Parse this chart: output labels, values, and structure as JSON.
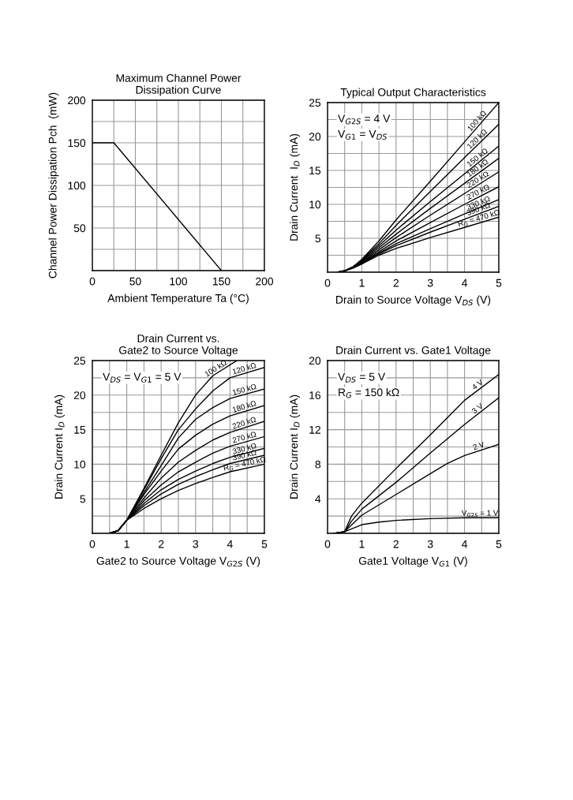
{
  "chart_data": [
    {
      "type": "line",
      "title": "Maximum Channel Power\nDissipation Curve",
      "xlabel": "Ambient Temperature Ta (°C)",
      "ylabel": "Channel Power Dissipation Pch  (mW)",
      "xlim": [
        0,
        200
      ],
      "ylim": [
        0,
        200
      ],
      "xticks": [
        0,
        {
          "value": 25,
          "label": null
        },
        50,
        {
          "value": 75,
          "label": null
        },
        100,
        {
          "value": 125,
          "label": null
        },
        150,
        {
          "value": 175,
          "label": null
        },
        200
      ],
      "yticks": [
        {
          "value": 0,
          "label": null
        },
        {
          "value": 25,
          "label": null
        },
        50,
        {
          "value": 75,
          "label": null
        },
        100,
        {
          "value": 125,
          "label": null
        },
        150,
        {
          "value": 175,
          "label": null
        },
        200
      ],
      "grid": true,
      "legend": false,
      "series": [
        {
          "color": "#000000",
          "x": [
            0,
            25,
            150
          ],
          "values": [
            150,
            150,
            0
          ]
        }
      ]
    },
    {
      "type": "line",
      "title": "Typical Output Characteristics",
      "xlabel": "Drain to Source Voltage V$_{DS}$ (V)",
      "ylabel": "Drain Current  I$_{D}$ (mA)",
      "xlim": [
        0,
        5
      ],
      "ylim": [
        0,
        25
      ],
      "xticks": [
        0,
        {
          "value": 0.5,
          "label": null
        },
        1,
        {
          "value": 1.5,
          "label": null
        },
        2,
        {
          "value": 2.5,
          "label": null
        },
        3,
        {
          "value": 3.5,
          "label": null
        },
        4,
        {
          "value": 4.5,
          "label": null
        },
        5
      ],
      "yticks": [
        {
          "value": 0,
          "label": null
        },
        {
          "value": 2.5,
          "label": null
        },
        5,
        {
          "value": 7.5,
          "label": null
        },
        10,
        {
          "value": 12.5,
          "label": null
        },
        15,
        {
          "value": 17.5,
          "label": null
        },
        20,
        {
          "value": 22.5,
          "label": null
        },
        25
      ],
      "grid": true,
      "legend": false,
      "annotations": [
        "V$_{G2S}$ = 4 V",
        "V$_{G1}$ = V$_{DS}$"
      ],
      "x": [
        0.3,
        0.5,
        0.75,
        1,
        1.5,
        2,
        3,
        4,
        5
      ],
      "series": [
        {
          "name": "100 kΩ",
          "color": "#000000",
          "values": [
            0,
            0.2,
            0.8,
            1.9,
            4.6,
            7.7,
            13.4,
            19.2,
            25
          ]
        },
        {
          "name": "120 kΩ",
          "color": "#000000",
          "values": [
            0,
            0.2,
            0.8,
            1.8,
            4.2,
            6.9,
            11.9,
            16.9,
            21.8
          ]
        },
        {
          "name": "150 kΩ",
          "color": "#000000",
          "values": [
            0,
            0.2,
            0.8,
            1.7,
            3.9,
            6.2,
            10.4,
            14.5,
            18.6
          ]
        },
        {
          "name": "180 kΩ",
          "color": "#000000",
          "values": [
            0,
            0.2,
            0.8,
            1.6,
            3.6,
            5.6,
            9.4,
            13.1,
            16.8
          ]
        },
        {
          "name": "220 kΩ",
          "color": "#000000",
          "values": [
            0,
            0.2,
            0.7,
            1.5,
            3.3,
            5.1,
            8.4,
            11.6,
            14.8
          ]
        },
        {
          "name": "270 kΩ",
          "color": "#000000",
          "values": [
            0,
            0.2,
            0.7,
            1.4,
            3.0,
            4.6,
            7.3,
            10.0,
            12.6
          ]
        },
        {
          "name": "330 kΩ",
          "color": "#000000",
          "values": [
            0,
            0.2,
            0.7,
            1.3,
            2.8,
            4.2,
            6.4,
            8.6,
            10.7
          ]
        },
        {
          "name": "390 kΩ",
          "color": "#000000",
          "values": [
            0,
            0.2,
            0.7,
            1.3,
            2.7,
            3.9,
            5.9,
            7.8,
            9.7
          ]
        },
        {
          "name": "R$_{G}$ = 470 kΩ",
          "color": "#000000",
          "values": [
            0,
            0.2,
            0.6,
            1.2,
            2.5,
            3.5,
            5.1,
            6.6,
            8.1
          ]
        }
      ]
    },
    {
      "type": "line",
      "title": "Drain Current vs.\nGate2 to Source Voltage",
      "xlabel": "Gate2 to Source Voltage V$_{G2S}$ (V)",
      "ylabel": "Drain Current I$_{D}$ (mA)",
      "xlim": [
        0,
        5
      ],
      "ylim": [
        0,
        25
      ],
      "xticks": [
        0,
        {
          "value": 0.5,
          "label": null
        },
        1,
        {
          "value": 1.5,
          "label": null
        },
        2,
        {
          "value": 2.5,
          "label": null
        },
        3,
        {
          "value": 3.5,
          "label": null
        },
        4,
        {
          "value": 4.5,
          "label": null
        },
        5
      ],
      "yticks": [
        {
          "value": 0,
          "label": null
        },
        {
          "value": 2.5,
          "label": null
        },
        5,
        {
          "value": 7.5,
          "label": null
        },
        10,
        {
          "value": 12.5,
          "label": null
        },
        15,
        {
          "value": 17.5,
          "label": null
        },
        20,
        {
          "value": 22.5,
          "label": null
        },
        25
      ],
      "grid": true,
      "legend": false,
      "annotations": [
        "V$_{DS}$ = V$_{G1}$ = 5 V"
      ],
      "series": [
        {
          "name": "100 kΩ",
          "color": "#000000",
          "x": [
            0.5,
            0.75,
            1,
            1.5,
            2,
            2.5,
            3,
            3.5,
            4.2
          ],
          "values": [
            0,
            0.4,
            1.9,
            6.5,
            11.3,
            16,
            20,
            22.8,
            25
          ]
        },
        {
          "name": "120 kΩ",
          "color": "#000000",
          "x": [
            0.5,
            0.75,
            1,
            1.5,
            2,
            2.5,
            3,
            3.5,
            4,
            5
          ],
          "values": [
            0,
            0.4,
            1.9,
            6.3,
            10.8,
            15,
            18,
            20.6,
            22.5,
            24
          ]
        },
        {
          "name": "150 kΩ",
          "color": "#000000",
          "x": [
            0.5,
            0.75,
            1,
            1.5,
            2,
            2.5,
            3,
            3.5,
            4,
            5
          ],
          "values": [
            0,
            0.4,
            1.9,
            5.9,
            9.8,
            13.8,
            16.5,
            18.2,
            19.5,
            20.9
          ]
        },
        {
          "name": "180 kΩ",
          "color": "#000000",
          "x": [
            0.5,
            0.75,
            1,
            1.5,
            2,
            2.5,
            3,
            3.5,
            4,
            5
          ],
          "values": [
            0,
            0.4,
            1.9,
            5.6,
            9.0,
            12.2,
            14.2,
            15.8,
            17,
            18.5
          ]
        },
        {
          "name": "220 kΩ",
          "color": "#000000",
          "x": [
            0.5,
            0.75,
            1,
            1.5,
            2,
            2.5,
            3,
            3.5,
            4,
            5
          ],
          "values": [
            0,
            0.4,
            1.9,
            5.1,
            8.0,
            10.3,
            12.0,
            13.5,
            14.6,
            16.2
          ]
        },
        {
          "name": "270 kΩ",
          "color": "#000000",
          "x": [
            0.5,
            0.75,
            1,
            1.5,
            2,
            2.5,
            3,
            3.5,
            4,
            5
          ],
          "values": [
            0,
            0.4,
            1.9,
            4.7,
            7.0,
            8.9,
            10.3,
            11.6,
            12.6,
            14.0
          ]
        },
        {
          "name": "330 kΩ",
          "color": "#000000",
          "x": [
            0.5,
            0.75,
            1,
            1.5,
            2,
            2.5,
            3,
            3.5,
            4,
            5
          ],
          "values": [
            0,
            0.4,
            1.9,
            4.3,
            6.3,
            7.8,
            9.0,
            10.1,
            11,
            12.3
          ]
        },
        {
          "name": "390 kΩ",
          "color": "#000000",
          "x": [
            0.5,
            0.75,
            1,
            1.5,
            2,
            2.5,
            3,
            3.5,
            4,
            5
          ],
          "values": [
            0,
            0.4,
            1.9,
            4.0,
            5.7,
            7.1,
            8.2,
            9.2,
            10.1,
            11.3
          ]
        },
        {
          "name": "R$_{G}$ = 470 kΩ",
          "color": "#000000",
          "x": [
            0.5,
            0.75,
            1,
            1.5,
            2,
            2.5,
            3,
            3.5,
            4,
            5
          ],
          "values": [
            0,
            0.4,
            1.9,
            3.6,
            5.0,
            6.2,
            7.2,
            8.1,
            8.9,
            10.0
          ]
        }
      ]
    },
    {
      "type": "line",
      "title": "Drain Current vs. Gate1 Voltage",
      "xlabel": "Gate1 Voltage V$_{G1}$ (V)",
      "ylabel": "Drain Current I$_{D}$ (mA)",
      "xlim": [
        0,
        5
      ],
      "ylim": [
        0,
        20
      ],
      "xticks": [
        0,
        {
          "value": 0.5,
          "label": null
        },
        1,
        {
          "value": 1.5,
          "label": null
        },
        2,
        {
          "value": 2.5,
          "label": null
        },
        3,
        {
          "value": 3.5,
          "label": null
        },
        4,
        {
          "value": 4.5,
          "label": null
        },
        5
      ],
      "yticks": [
        {
          "value": 0,
          "label": null
        },
        {
          "value": 2,
          "label": null
        },
        4,
        {
          "value": 6,
          "label": null
        },
        8,
        {
          "value": 10,
          "label": null
        },
        12,
        {
          "value": 14,
          "label": null
        },
        16,
        {
          "value": 18,
          "label": null
        },
        20
      ],
      "grid": true,
      "legend": false,
      "annotations": [
        "V$_{DS}$ = 5 V",
        "R$_{G}$ = 150 kΩ"
      ],
      "series": [
        {
          "name": "4 V",
          "color": "#000000",
          "x": [
            0.2,
            0.5,
            0.7,
            1,
            2,
            3,
            4,
            5
          ],
          "values": [
            0,
            0.2,
            2,
            3.5,
            7.5,
            11.4,
            15.4,
            18.4
          ]
        },
        {
          "name": "3 V",
          "color": "#000000",
          "x": [
            0.2,
            0.5,
            0.7,
            1,
            2,
            3,
            4,
            5
          ],
          "values": [
            0,
            0.2,
            1.4,
            2.8,
            5.9,
            9.3,
            12.6,
            15.7
          ]
        },
        {
          "name": "2 V",
          "color": "#000000",
          "x": [
            0.2,
            0.5,
            1,
            2,
            3,
            3.5,
            4,
            5
          ],
          "values": [
            0,
            0.2,
            2.1,
            4.5,
            6.9,
            8.1,
            9.0,
            10.3
          ]
        },
        {
          "name": "V$_{G2S}$ = 1 V",
          "color": "#000000",
          "x": [
            0.2,
            0.5,
            1,
            1.5,
            2,
            3,
            4,
            5
          ],
          "values": [
            0,
            0.2,
            1.0,
            1.3,
            1.5,
            1.7,
            1.8,
            1.8
          ]
        }
      ]
    }
  ]
}
